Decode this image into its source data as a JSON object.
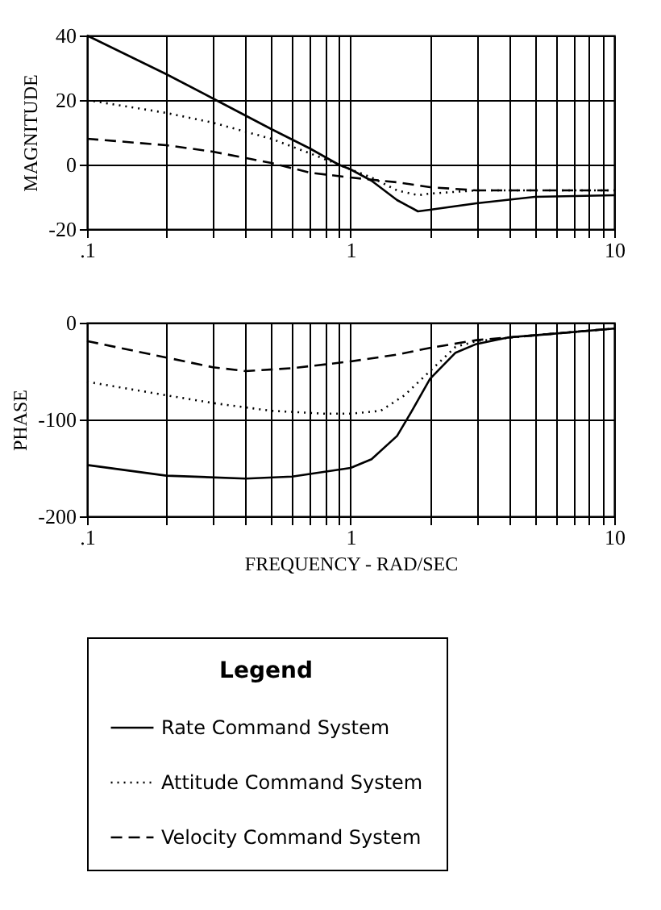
{
  "chart_data": [
    {
      "type": "line",
      "ylabel": "MAGNITUDE",
      "log": "x",
      "grid": true,
      "legend": false,
      "xlim": [
        0.1,
        10
      ],
      "ylim": [
        -20,
        40
      ],
      "yticks": [
        -20,
        0,
        20,
        40
      ],
      "xticks": [
        {
          "value": 0.1,
          "label": ".1"
        },
        {
          "value": 0.2,
          "label": null
        },
        {
          "value": 0.3,
          "label": null
        },
        {
          "value": 0.4,
          "label": null
        },
        {
          "value": 0.5,
          "label": null
        },
        {
          "value": 0.6,
          "label": null
        },
        {
          "value": 0.7,
          "label": null
        },
        {
          "value": 0.8,
          "label": null
        },
        {
          "value": 0.9,
          "label": null
        },
        1,
        {
          "value": 2,
          "label": null
        },
        {
          "value": 3,
          "label": null
        },
        {
          "value": 4,
          "label": null
        },
        {
          "value": 5,
          "label": null
        },
        {
          "value": 6,
          "label": null
        },
        {
          "value": 7,
          "label": null
        },
        {
          "value": 8,
          "label": null
        },
        {
          "value": 9,
          "label": null
        },
        10
      ],
      "series": [
        {
          "color": "#000000",
          "line_style": "solid",
          "x": [
            0.1,
            0.2,
            0.3,
            0.5,
            0.7,
            0.9,
            1,
            1.2,
            1.5,
            1.8,
            2,
            3,
            5,
            10
          ],
          "values": [
            40,
            28,
            20.5,
            11,
            5,
            0,
            -1.5,
            -5,
            -11,
            -14.5,
            -14,
            -12,
            -10,
            -9.5
          ]
        },
        {
          "color": "#000000",
          "line_style": "dotted",
          "x": [
            0.1,
            0.2,
            0.3,
            0.5,
            0.7,
            0.9,
            1,
            1.2,
            1.5,
            1.8,
            2,
            3,
            5,
            10
          ],
          "values": [
            20,
            16,
            13,
            8,
            3.5,
            0,
            -1.5,
            -4,
            -8,
            -9.5,
            -9,
            -8,
            -8,
            -8
          ]
        },
        {
          "color": "#000000",
          "line_style": "dashed",
          "x": [
            0.1,
            0.2,
            0.3,
            0.5,
            0.7,
            1,
            1.5,
            2,
            3,
            5,
            10
          ],
          "values": [
            8,
            6,
            4,
            0.5,
            -2.5,
            -4,
            -5.5,
            -7,
            -8,
            -8,
            -8
          ]
        }
      ]
    },
    {
      "type": "line",
      "ylabel": "PHASE",
      "xlabel": "FREQUENCY - RAD/SEC",
      "legend_title": "Legend",
      "log": "x",
      "grid": true,
      "legend": "bottom",
      "xlim": [
        0.1,
        10
      ],
      "ylim": [
        -200,
        0
      ],
      "yticks": [
        -200,
        -100,
        0
      ],
      "xticks": [
        {
          "value": 0.1,
          "label": ".1"
        },
        {
          "value": 0.2,
          "label": null
        },
        {
          "value": 0.3,
          "label": null
        },
        {
          "value": 0.4,
          "label": null
        },
        {
          "value": 0.5,
          "label": null
        },
        {
          "value": 0.6,
          "label": null
        },
        {
          "value": 0.7,
          "label": null
        },
        {
          "value": 0.8,
          "label": null
        },
        {
          "value": 0.9,
          "label": null
        },
        1,
        {
          "value": 2,
          "label": null
        },
        {
          "value": 3,
          "label": null
        },
        {
          "value": 4,
          "label": null
        },
        {
          "value": 5,
          "label": null
        },
        {
          "value": 6,
          "label": null
        },
        {
          "value": 7,
          "label": null
        },
        {
          "value": 8,
          "label": null
        },
        {
          "value": 9,
          "label": null
        },
        10
      ],
      "series": [
        {
          "name": "Rate Command System",
          "color": "#000000",
          "line_style": "solid",
          "x": [
            0.1,
            0.2,
            0.4,
            0.6,
            1,
            1.2,
            1.5,
            1.7,
            2,
            2.5,
            3,
            4,
            5,
            10
          ],
          "values": [
            -147,
            -158,
            -161,
            -159,
            -150,
            -141,
            -117,
            -92,
            -58,
            -31,
            -22,
            -15,
            -13,
            -6
          ]
        },
        {
          "name": "Attitude Command System",
          "color": "#000000",
          "line_style": "dotted",
          "x": [
            0.1,
            0.2,
            0.3,
            0.5,
            0.8,
            1,
            1.3,
            1.6,
            2,
            2.5,
            3,
            5,
            10
          ],
          "values": [
            -61,
            -75,
            -83,
            -91,
            -94,
            -94,
            -91,
            -75,
            -50,
            -25,
            -19,
            -13,
            -6
          ]
        },
        {
          "name": "Velocity Command System",
          "color": "#000000",
          "line_style": "dashed",
          "x": [
            0.1,
            0.2,
            0.3,
            0.4,
            0.6,
            1,
            1.5,
            2,
            3,
            5,
            10
          ],
          "values": [
            -19,
            -36,
            -46,
            -50,
            -47,
            -40,
            -33,
            -26,
            -18,
            -13,
            -6
          ]
        }
      ]
    }
  ]
}
